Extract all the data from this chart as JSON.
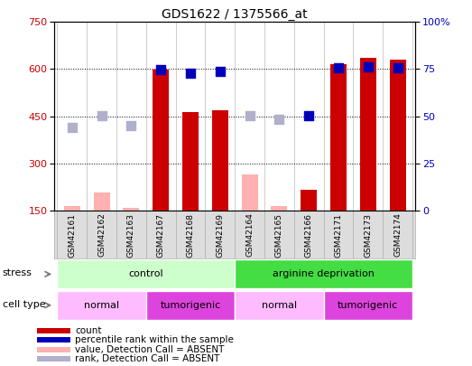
{
  "title": "GDS1622 / 1375566_at",
  "samples": [
    "GSM42161",
    "GSM42162",
    "GSM42163",
    "GSM42167",
    "GSM42168",
    "GSM42169",
    "GSM42164",
    "GSM42165",
    "GSM42166",
    "GSM42171",
    "GSM42173",
    "GSM42174"
  ],
  "count_values": [
    null,
    null,
    null,
    597,
    462,
    470,
    null,
    null,
    215,
    617,
    637,
    630
  ],
  "count_absent": [
    163,
    208,
    158,
    null,
    null,
    null,
    265,
    163,
    null,
    null,
    null,
    null
  ],
  "rank_values": [
    null,
    null,
    null,
    597,
    588,
    592,
    null,
    null,
    453,
    603,
    607,
    605
  ],
  "rank_absent": [
    415,
    452,
    420,
    null,
    null,
    null,
    453,
    440,
    null,
    null,
    null,
    null
  ],
  "ylim": [
    150,
    750
  ],
  "yticks": [
    150,
    300,
    450,
    600,
    750
  ],
  "y2lim": [
    0,
    100
  ],
  "y2ticks": [
    0,
    25,
    50,
    75,
    100
  ],
  "y2ticklabels": [
    "0",
    "25",
    "50",
    "75",
    "100%"
  ],
  "bar_color": "#cc0000",
  "bar_absent_color": "#ffb0b0",
  "rank_color": "#0000bb",
  "rank_absent_color": "#b0b0cc",
  "bg_color": "#f0f0f0",
  "stress_groups": [
    {
      "label": "control",
      "start": 0,
      "end": 5,
      "color": "#ccffcc"
    },
    {
      "label": "arginine deprivation",
      "start": 6,
      "end": 11,
      "color": "#44dd44"
    }
  ],
  "cell_type_groups": [
    {
      "label": "normal",
      "start": 0,
      "end": 2,
      "color": "#ffbbff"
    },
    {
      "label": "tumorigenic",
      "start": 3,
      "end": 5,
      "color": "#dd44dd"
    },
    {
      "label": "normal",
      "start": 6,
      "end": 8,
      "color": "#ffbbff"
    },
    {
      "label": "tumorigenic",
      "start": 9,
      "end": 11,
      "color": "#dd44dd"
    }
  ],
  "legend_items": [
    {
      "label": "count",
      "color": "#cc0000"
    },
    {
      "label": "percentile rank within the sample",
      "color": "#0000bb"
    },
    {
      "label": "value, Detection Call = ABSENT",
      "color": "#ffb0b0"
    },
    {
      "label": "rank, Detection Call = ABSENT",
      "color": "#b0b0cc"
    }
  ],
  "stress_label": "stress",
  "cell_type_label": "cell type"
}
